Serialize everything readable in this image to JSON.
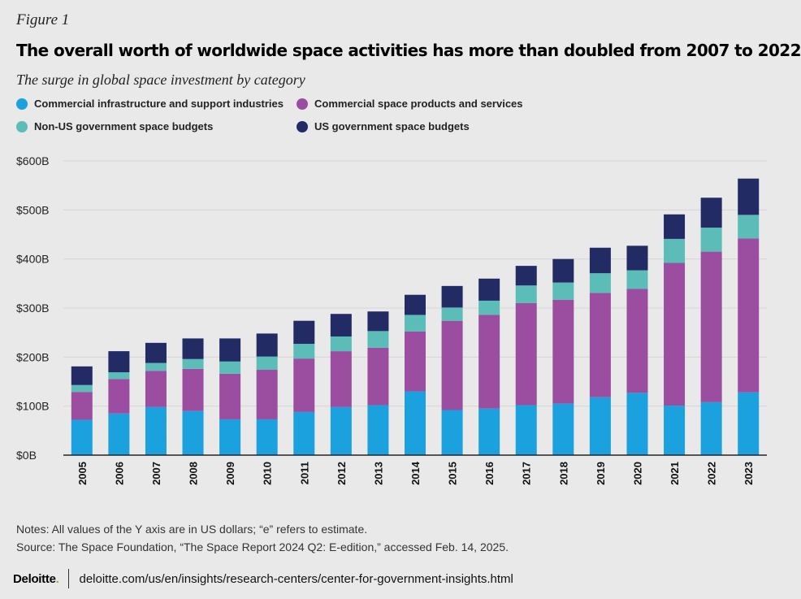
{
  "figure_label": "Figure 1",
  "title": "The overall worth of worldwide space activities has more than doubled from 2007 to 2022",
  "subtitle": "The surge in global space investment by category",
  "colors": {
    "commercial_infrastructure": "#1ba1dd",
    "commercial_products": "#9b4ea0",
    "non_us_gov": "#5bbcb8",
    "us_gov": "#232b65",
    "grid": "#d6d6d6",
    "axis": "#222222"
  },
  "legend": [
    {
      "label": "Commercial infrastructure and support industries",
      "color": "#1ba1dd"
    },
    {
      "label": "Commercial space products and services",
      "color": "#9b4ea0"
    },
    {
      "label": "Non-US government space budgets",
      "color": "#5bbcb8"
    },
    {
      "label": "US government space budgets",
      "color": "#232b65"
    }
  ],
  "chart_data": {
    "type": "bar",
    "stacked": true,
    "categories": [
      "2005",
      "2006",
      "2007",
      "2008",
      "2009",
      "2010",
      "2011",
      "2012",
      "2013",
      "2014",
      "2015",
      "2016",
      "2017",
      "2018",
      "2019",
      "2020",
      "2021",
      "2022",
      "2023"
    ],
    "series": [
      {
        "name": "Commercial infrastructure and support industries",
        "color": "#1ba1dd",
        "values": [
          72,
          85,
          98,
          90,
          73,
          73,
          88,
          98,
          102,
          130,
          92,
          95,
          102,
          105,
          118,
          127,
          101,
          108,
          128
        ]
      },
      {
        "name": "Commercial space products and services",
        "color": "#9b4ea0",
        "values": [
          57,
          70,
          74,
          86,
          93,
          101,
          109,
          114,
          117,
          122,
          182,
          191,
          208,
          212,
          213,
          212,
          291,
          307,
          314
        ]
      },
      {
        "name": "Non-US government space budgets",
        "color": "#5bbcb8",
        "values": [
          14,
          14,
          16,
          20,
          25,
          27,
          30,
          30,
          34,
          34,
          27,
          29,
          36,
          35,
          40,
          38,
          49,
          49,
          48
        ]
      },
      {
        "name": "US government space budgets",
        "color": "#232b65",
        "values": [
          38,
          43,
          41,
          42,
          47,
          47,
          47,
          46,
          40,
          41,
          44,
          45,
          40,
          48,
          52,
          50,
          50,
          61,
          74
        ]
      }
    ],
    "yticks": [
      "$0B",
      "$100B",
      "$200B",
      "$300B",
      "$400B",
      "$500B",
      "$600B"
    ],
    "ylim": [
      0,
      600
    ],
    "grid": true,
    "legend_position": "top"
  },
  "notes": [
    "Notes: All values of the Y axis are in US dollars; “e” refers to estimate.",
    "Source: The Space Foundation, “The Space Report 2024 Q2: E-edition,” accessed Feb. 14, 2025."
  ],
  "footer": {
    "brand": "Deloitte",
    "brand_dot": ".",
    "url": "deloitte.com/us/en/insights/research-centers/center-for-government-insights.html"
  }
}
